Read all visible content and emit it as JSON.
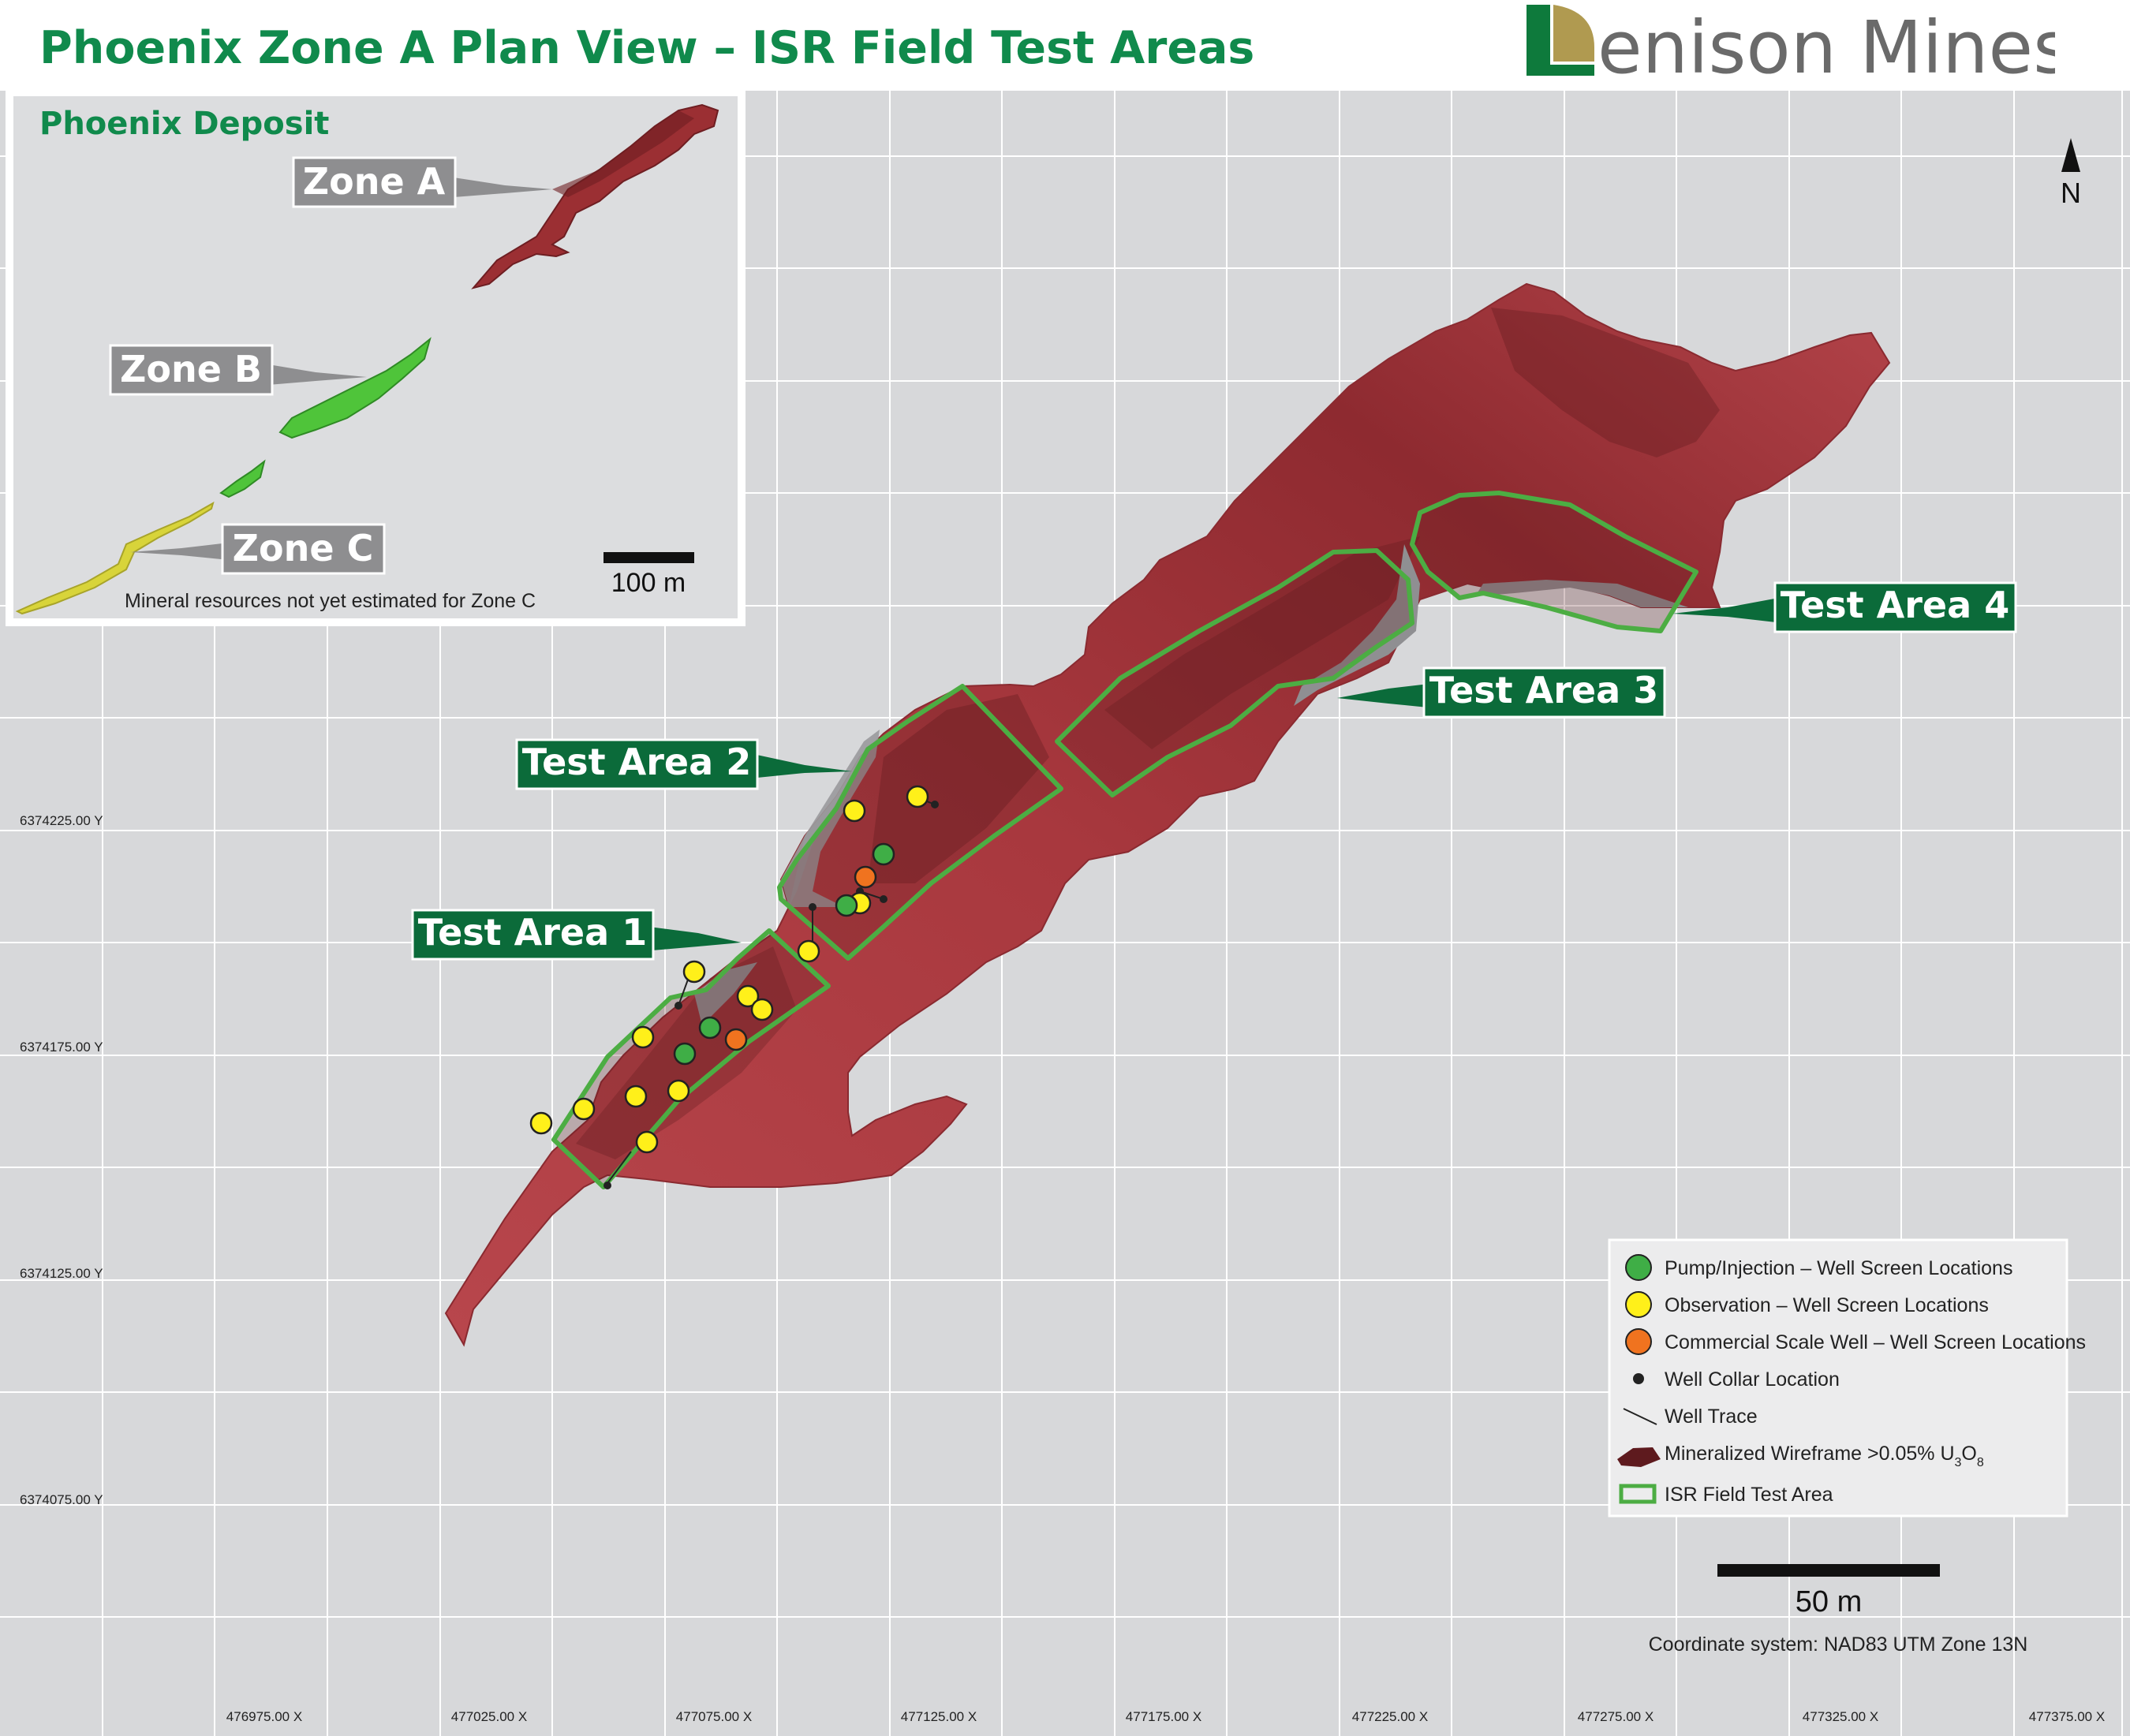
{
  "title": "Phoenix Zone A Plan View – ISR Field Test Areas",
  "logo": {
    "text": "enison Mines",
    "brand": "Denison Mines",
    "icon": "denison-d-logo-icon",
    "colors": {
      "green": "#0e7a3c",
      "gold": "#b09a50",
      "grey": "#6a6a6a"
    }
  },
  "north_arrow": {
    "label": "N"
  },
  "inset": {
    "title": "Phoenix Deposit",
    "zones": [
      {
        "label": "Zone A",
        "color": "#9b2f33"
      },
      {
        "label": "Zone B",
        "color": "#4fc43a"
      },
      {
        "label": "Zone C",
        "color": "#d8d43a"
      }
    ],
    "note": "Mineral resources not yet estimated for Zone C",
    "scale_label": "100 m"
  },
  "test_areas": [
    {
      "label": "Test Area 1"
    },
    {
      "label": "Test Area 2"
    },
    {
      "label": "Test Area 3"
    },
    {
      "label": "Test Area 4"
    }
  ],
  "y_ticks": [
    "6374225.00 Y",
    "6374175.00 Y",
    "6374125.00 Y",
    "6374075.00 Y"
  ],
  "x_ticks": [
    "476975.00 X",
    "477025.00 X",
    "477075.00 X",
    "477125.00 X",
    "477175.00 X",
    "477225.00 X",
    "477275.00 X",
    "477325.00 X",
    "477375.00 X"
  ],
  "legend": {
    "pump": "Pump/Injection – Well Screen Locations",
    "observation": "Observation – Well Screen Locations",
    "commercial": "Commercial Scale Well – Well Screen Locations",
    "collar": "Well Collar Location",
    "trace": "Well Trace",
    "wireframe_prefix": "Mineralized Wireframe >0.05% U",
    "wireframe_sub1": "3",
    "wireframe_mid": "O",
    "wireframe_sub2": "8",
    "test_area": "ISR Field Test Area"
  },
  "scale_bar": {
    "label": "50 m"
  },
  "coordinate_system": "Coordinate system: NAD83 UTM Zone 13N",
  "colors": {
    "wireframe": "#a83a40",
    "wireframe_dark": "#5e1a1e",
    "test_area_outline": "#4cad43",
    "label_bg": "#0b6b3a",
    "pump": "#3fae46",
    "observation": "#fff01a",
    "commercial": "#f0731f",
    "map_bg": "#d7d8da",
    "grid": "#ffffff"
  }
}
